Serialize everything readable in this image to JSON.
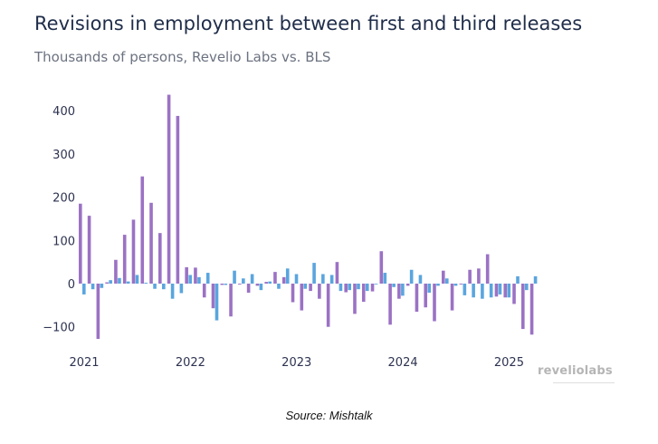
{
  "header": {
    "title": "Revisions in employment between first and third releases",
    "subtitle": "Thousands of persons, Revelio Labs vs. BLS"
  },
  "footer": {
    "source": "Source: Mishtalk",
    "logo": "reveliolabs"
  },
  "colors": {
    "revelio": "#9b72c4",
    "bls": "#5aa5de",
    "text": "#2d3350"
  },
  "chart_data": {
    "type": "bar",
    "title": "Revisions in employment between first and third releases",
    "subtitle": "Thousands of persons, Revelio Labs vs. BLS",
    "xlabel": "",
    "ylabel": "",
    "ylim": [
      -140,
      450
    ],
    "yticks": [
      400,
      300,
      200,
      100,
      0,
      -100
    ],
    "ytick_labels": [
      "400",
      "300",
      "200",
      "100",
      "0",
      "−100"
    ],
    "xtick_labels": [
      "2021",
      "2022",
      "2023",
      "2024",
      "2025"
    ],
    "legend": "none",
    "grid": false,
    "categories": [
      "2021-01",
      "2021-02",
      "2021-03",
      "2021-04",
      "2021-05",
      "2021-06",
      "2021-07",
      "2021-08",
      "2021-09",
      "2021-10",
      "2021-11",
      "2021-12",
      "2022-01",
      "2022-02",
      "2022-03",
      "2022-04",
      "2022-05",
      "2022-06",
      "2022-07",
      "2022-08",
      "2022-09",
      "2022-10",
      "2022-11",
      "2022-12",
      "2023-01",
      "2023-02",
      "2023-03",
      "2023-04",
      "2023-05",
      "2023-06",
      "2023-07",
      "2023-08",
      "2023-09",
      "2023-10",
      "2023-11",
      "2023-12",
      "2024-01",
      "2024-02",
      "2024-03",
      "2024-04",
      "2024-05",
      "2024-06",
      "2024-07",
      "2024-08",
      "2024-09",
      "2024-10",
      "2024-11",
      "2024-12",
      "2025-01",
      "2025-02",
      "2025-03",
      "2025-04"
    ],
    "series": [
      {
        "color": "#9b72c4",
        "values": [
          185,
          157,
          -128,
          3,
          55,
          113,
          148,
          248,
          187,
          117,
          437,
          388,
          38,
          37,
          -32,
          -57,
          -3,
          -76,
          -2,
          -21,
          -5,
          4,
          27,
          15,
          -43,
          -62,
          -17,
          -35,
          -100,
          50,
          -20,
          -70,
          -42,
          -18,
          75,
          -95,
          -35,
          -5,
          -65,
          -55,
          -87,
          30,
          -62,
          -2,
          32,
          35,
          68,
          -30,
          -32,
          -47,
          -105,
          -118
        ]
      },
      {
        "color": "#5aa5de",
        "values": [
          -25,
          -13,
          -10,
          8,
          13,
          5,
          20,
          2,
          -12,
          -13,
          -35,
          -22,
          20,
          15,
          25,
          -85,
          -3,
          30,
          12,
          22,
          -15,
          5,
          -12,
          35,
          22,
          -12,
          48,
          22,
          20,
          -17,
          -15,
          -13,
          -17,
          -1,
          25,
          -8,
          -28,
          32,
          20,
          -21,
          -5,
          12,
          -5,
          -27,
          -32,
          -35,
          -32,
          -25,
          -32,
          17,
          -15,
          17
        ]
      }
    ]
  }
}
